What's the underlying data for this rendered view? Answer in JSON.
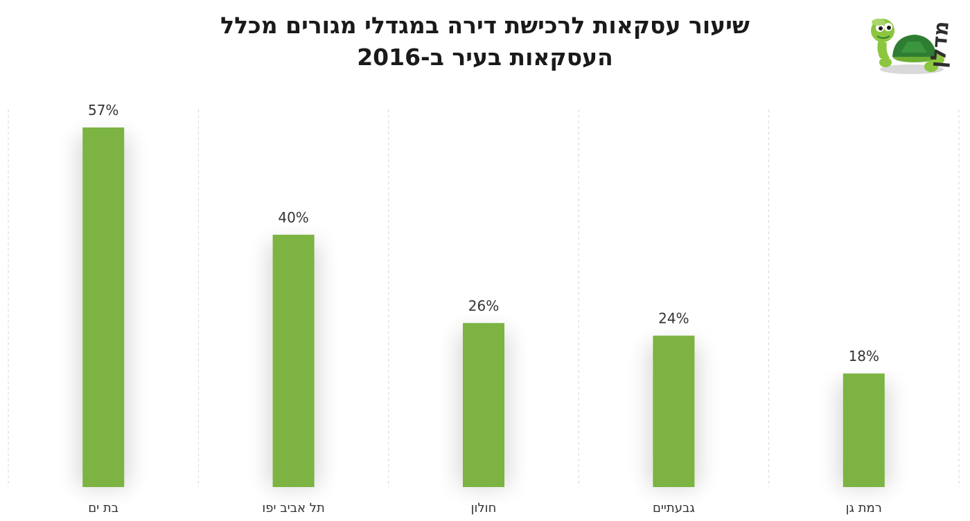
{
  "logo": {
    "text": "מדלן",
    "icon": "turtle-icon",
    "colors": {
      "text": "#2e2e2e",
      "shell": "#2f7d32",
      "body": "#8cc63f"
    }
  },
  "chart_data": {
    "type": "bar",
    "title_lines": [
      "שיעור עסקאות לרכישת דירה במגדלי מגורים מכלל",
      "העסקאות בעיר ב-2016"
    ],
    "categories": [
      "בת ים",
      "תל אביב יפו",
      "חולון",
      "גבעתיים",
      "רמת גן"
    ],
    "values": [
      57,
      40,
      26,
      24,
      18
    ],
    "data_labels": [
      "57%",
      "40%",
      "26%",
      "24%",
      "18%"
    ],
    "unit": "%",
    "ylim": [
      0,
      60
    ],
    "grid": true,
    "grid_style": "dashed-vertical",
    "legend": "none",
    "xlabel": "",
    "ylabel": "",
    "colors": {
      "bar": "#7cb342",
      "grid": "#d6d6d6"
    }
  }
}
